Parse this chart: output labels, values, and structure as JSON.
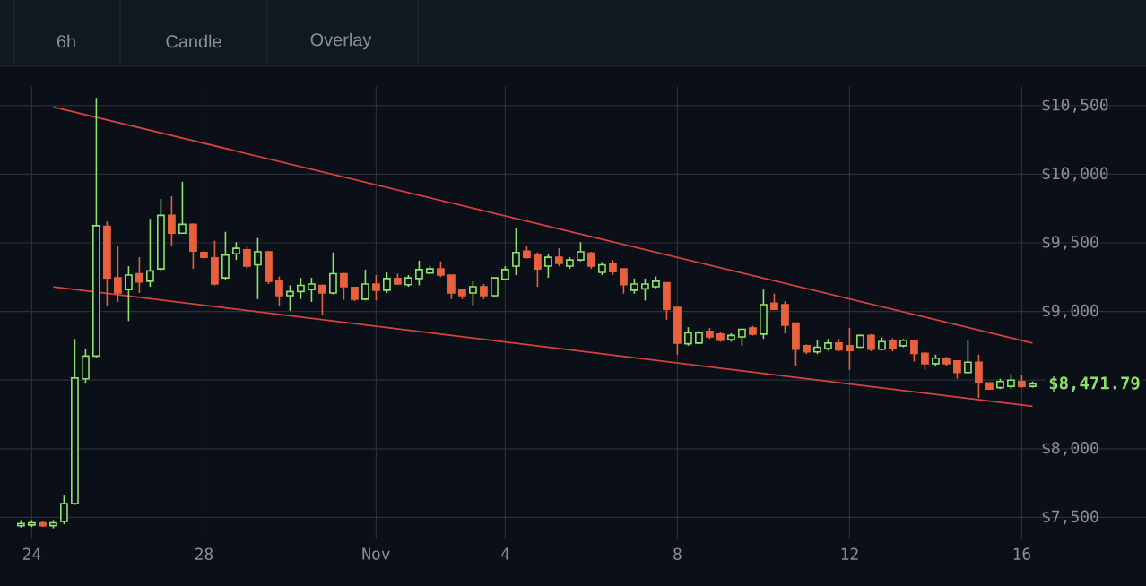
{
  "chart_data": {
    "type": "candlestick",
    "categories": [
      null,
      "24",
      null,
      null,
      null,
      null,
      null,
      null,
      null,
      null,
      null,
      null,
      null,
      null,
      null,
      null,
      null,
      "28",
      null,
      null,
      null,
      null,
      null,
      null,
      null,
      null,
      null,
      null,
      null,
      null,
      null,
      null,
      null,
      "Nov",
      null,
      null,
      null,
      null,
      null,
      null,
      null,
      null,
      null,
      null,
      null,
      "4",
      null,
      null,
      null,
      null,
      null,
      null,
      null,
      null,
      null,
      null,
      null,
      null,
      null,
      null,
      null,
      "8",
      null,
      null,
      null,
      null,
      null,
      null,
      null,
      null,
      null,
      null,
      null,
      null,
      null,
      null,
      null,
      "12",
      null,
      null,
      null,
      null,
      null,
      null,
      null,
      null,
      null,
      null,
      null,
      null,
      null,
      null,
      null,
      "16",
      null
    ],
    "ohlc": [
      [
        7440,
        7480,
        7425,
        7455
      ],
      [
        7445,
        7480,
        7430,
        7460
      ],
      [
        7460,
        7470,
        7430,
        7440
      ],
      [
        7440,
        7480,
        7420,
        7460
      ],
      [
        7470,
        7665,
        7450,
        7600
      ],
      [
        7600,
        8800,
        7590,
        8515
      ],
      [
        8510,
        8725,
        8480,
        8675
      ],
      [
        8675,
        10556,
        8660,
        9625
      ],
      [
        9620,
        9655,
        9040,
        9245
      ],
      [
        9245,
        9475,
        9070,
        9135
      ],
      [
        9160,
        9330,
        8930,
        9265
      ],
      [
        9275,
        9395,
        9135,
        9215
      ],
      [
        9220,
        9675,
        9180,
        9295
      ],
      [
        9310,
        9820,
        9290,
        9700
      ],
      [
        9700,
        9840,
        9475,
        9570
      ],
      [
        9570,
        9945,
        9565,
        9635
      ],
      [
        9635,
        9640,
        9310,
        9440
      ],
      [
        9430,
        9440,
        9385,
        9395
      ],
      [
        9390,
        9515,
        9190,
        9200
      ],
      [
        9245,
        9580,
        9225,
        9410
      ],
      [
        9420,
        9505,
        9375,
        9460
      ],
      [
        9450,
        9480,
        9310,
        9330
      ],
      [
        9340,
        9535,
        9090,
        9435
      ],
      [
        9435,
        9440,
        9200,
        9220
      ],
      [
        9220,
        9255,
        9040,
        9115
      ],
      [
        9115,
        9190,
        9005,
        9145
      ],
      [
        9145,
        9245,
        9090,
        9190
      ],
      [
        9160,
        9245,
        9070,
        9200
      ],
      [
        9190,
        9195,
        8975,
        9135
      ],
      [
        9135,
        9430,
        9125,
        9275
      ],
      [
        9275,
        9280,
        9085,
        9180
      ],
      [
        9175,
        9180,
        9075,
        9090
      ],
      [
        9090,
        9305,
        9080,
        9200
      ],
      [
        9200,
        9265,
        9080,
        9155
      ],
      [
        9155,
        9285,
        9135,
        9240
      ],
      [
        9240,
        9275,
        9195,
        9200
      ],
      [
        9195,
        9265,
        9180,
        9245
      ],
      [
        9240,
        9370,
        9190,
        9305
      ],
      [
        9280,
        9330,
        9270,
        9310
      ],
      [
        9310,
        9365,
        9250,
        9265
      ],
      [
        9265,
        9265,
        9090,
        9135
      ],
      [
        9155,
        9165,
        9090,
        9115
      ],
      [
        9135,
        9220,
        9045,
        9180
      ],
      [
        9180,
        9200,
        9090,
        9115
      ],
      [
        9115,
        9245,
        9105,
        9245
      ],
      [
        9235,
        9330,
        9225,
        9305
      ],
      [
        9330,
        9605,
        9265,
        9430
      ],
      [
        9440,
        9475,
        9385,
        9395
      ],
      [
        9415,
        9430,
        9180,
        9310
      ],
      [
        9330,
        9415,
        9245,
        9395
      ],
      [
        9395,
        9460,
        9330,
        9350
      ],
      [
        9330,
        9395,
        9310,
        9375
      ],
      [
        9375,
        9505,
        9365,
        9435
      ],
      [
        9425,
        9435,
        9310,
        9330
      ],
      [
        9285,
        9360,
        9265,
        9340
      ],
      [
        9350,
        9375,
        9265,
        9290
      ],
      [
        9310,
        9310,
        9130,
        9195
      ],
      [
        9155,
        9240,
        9130,
        9200
      ],
      [
        9165,
        9240,
        9080,
        9200
      ],
      [
        9180,
        9255,
        9170,
        9220
      ],
      [
        9210,
        9210,
        8940,
        9015
      ],
      [
        9030,
        9030,
        8685,
        8770
      ],
      [
        8765,
        8885,
        8750,
        8845
      ],
      [
        8770,
        8860,
        8765,
        8845
      ],
      [
        8855,
        8880,
        8800,
        8815
      ],
      [
        8835,
        8850,
        8780,
        8790
      ],
      [
        8795,
        8840,
        8780,
        8825
      ],
      [
        8815,
        8870,
        8750,
        8870
      ],
      [
        8880,
        8895,
        8825,
        8835
      ],
      [
        8835,
        9160,
        8800,
        9050
      ],
      [
        9060,
        9130,
        9010,
        9015
      ],
      [
        9050,
        9075,
        8840,
        8900
      ],
      [
        8915,
        8920,
        8605,
        8725
      ],
      [
        8750,
        8760,
        8690,
        8705
      ],
      [
        8705,
        8790,
        8690,
        8740
      ],
      [
        8730,
        8800,
        8715,
        8770
      ],
      [
        8770,
        8800,
        8710,
        8720
      ],
      [
        8750,
        8880,
        8575,
        8715
      ],
      [
        8740,
        8830,
        8735,
        8825
      ],
      [
        8825,
        8835,
        8710,
        8725
      ],
      [
        8725,
        8810,
        8715,
        8780
      ],
      [
        8785,
        8805,
        8710,
        8735
      ],
      [
        8750,
        8800,
        8740,
        8790
      ],
      [
        8785,
        8795,
        8635,
        8695
      ],
      [
        8695,
        8705,
        8575,
        8620
      ],
      [
        8620,
        8685,
        8600,
        8660
      ],
      [
        8660,
        8670,
        8600,
        8620
      ],
      [
        8640,
        8640,
        8510,
        8555
      ],
      [
        8555,
        8790,
        8550,
        8630
      ],
      [
        8630,
        8685,
        8370,
        8480
      ],
      [
        8480,
        8480,
        8430,
        8435
      ],
      [
        8445,
        8510,
        8435,
        8490
      ],
      [
        8455,
        8545,
        8435,
        8500
      ],
      [
        8490,
        8535,
        8445,
        8455
      ],
      [
        8455,
        8490,
        8445,
        8471.79
      ]
    ],
    "colors": [
      "#8ee26c",
      "#8ee26c",
      "#e8603c",
      "#8ee26c",
      "#8ee26c",
      "#8ee26c",
      "#8ee26c",
      "#8ee26c",
      "#e8603c",
      "#e8603c",
      "#8ee26c",
      "#e8603c",
      "#8ee26c",
      "#8ee26c",
      "#e8603c",
      "#8ee26c",
      "#e8603c",
      "#e8603c",
      "#e8603c",
      "#8ee26c",
      "#8ee26c",
      "#e8603c",
      "#8ee26c",
      "#e8603c",
      "#e8603c",
      "#8ee26c",
      "#8ee26c",
      "#8ee26c",
      "#e8603c",
      "#8ee26c",
      "#e8603c",
      "#e8603c",
      "#8ee26c",
      "#e8603c",
      "#8ee26c",
      "#e8603c",
      "#8ee26c",
      "#8ee26c",
      "#8ee26c",
      "#e8603c",
      "#e8603c",
      "#e8603c",
      "#8ee26c",
      "#e8603c",
      "#8ee26c",
      "#8ee26c",
      "#8ee26c",
      "#e8603c",
      "#e8603c",
      "#8ee26c",
      "#e8603c",
      "#8ee26c",
      "#8ee26c",
      "#e8603c",
      "#8ee26c",
      "#e8603c",
      "#e8603c",
      "#8ee26c",
      "#8ee26c",
      "#8ee26c",
      "#e8603c",
      "#e8603c",
      "#8ee26c",
      "#8ee26c",
      "#e8603c",
      "#e8603c",
      "#8ee26c",
      "#8ee26c",
      "#e8603c",
      "#8ee26c",
      "#e8603c",
      "#e8603c",
      "#e8603c",
      "#e8603c",
      "#8ee26c",
      "#8ee26c",
      "#e8603c",
      "#e8603c",
      "#8ee26c",
      "#e8603c",
      "#8ee26c",
      "#e8603c",
      "#8ee26c",
      "#e8603c",
      "#e8603c",
      "#8ee26c",
      "#e8603c",
      "#e8603c",
      "#8ee26c",
      "#e8603c",
      "#e8603c",
      "#8ee26c",
      "#8ee26c",
      "#e8603c",
      "#8ee26c"
    ],
    "series": [
      {
        "type": "line",
        "values": [
          null,
          null,
          null,
          10490,
          null,
          null,
          null,
          null,
          null,
          null,
          null,
          null,
          null,
          null,
          null,
          null,
          null,
          null,
          null,
          null,
          null,
          null,
          null,
          null,
          null,
          null,
          null,
          null,
          null,
          null,
          null,
          null,
          null,
          null,
          null,
          null,
          null,
          null,
          null,
          null,
          null,
          null,
          null,
          null,
          null,
          null,
          null,
          null,
          null,
          null,
          null,
          null,
          null,
          null,
          null,
          null,
          null,
          null,
          null,
          null,
          null,
          null,
          null,
          null,
          null,
          null,
          null,
          null,
          null,
          null,
          null,
          null,
          null,
          null,
          null,
          null,
          null,
          null,
          null,
          null,
          null,
          null,
          null,
          null,
          null,
          null,
          null,
          null,
          null,
          null,
          null,
          null,
          null,
          null,
          8770
        ],
        "color": "#d9413f"
      },
      {
        "type": "line",
        "values": [
          null,
          null,
          null,
          9180,
          null,
          null,
          null,
          null,
          null,
          null,
          null,
          null,
          null,
          null,
          null,
          null,
          null,
          null,
          null,
          null,
          null,
          null,
          null,
          null,
          null,
          null,
          null,
          null,
          null,
          null,
          null,
          null,
          null,
          null,
          null,
          null,
          null,
          null,
          null,
          null,
          null,
          null,
          null,
          null,
          null,
          null,
          null,
          null,
          null,
          null,
          null,
          null,
          null,
          null,
          null,
          null,
          null,
          null,
          null,
          null,
          null,
          null,
          null,
          null,
          null,
          null,
          null,
          null,
          null,
          null,
          null,
          null,
          null,
          null,
          null,
          null,
          null,
          null,
          null,
          null,
          null,
          null,
          null,
          null,
          null,
          null,
          null,
          null,
          null,
          null,
          null,
          null,
          null,
          null,
          8310
        ],
        "color": "#d9413f"
      }
    ],
    "ylim": [
      7350,
      10640
    ],
    "yticks": [
      {
        "value": 7500,
        "label": "$7,500"
      },
      {
        "value": 8000,
        "label": "$8,000"
      },
      {
        "value": 8500,
        "label": null
      },
      {
        "value": 9000,
        "label": "$9,000"
      },
      {
        "value": 9500,
        "label": "$9,500"
      },
      {
        "value": 10000,
        "label": "$10,000"
      },
      {
        "value": 10500,
        "label": "$10,500"
      }
    ],
    "grid": true,
    "annotations": [
      "6h",
      "Candle",
      "Overlay",
      "$8,471.79"
    ]
  }
}
